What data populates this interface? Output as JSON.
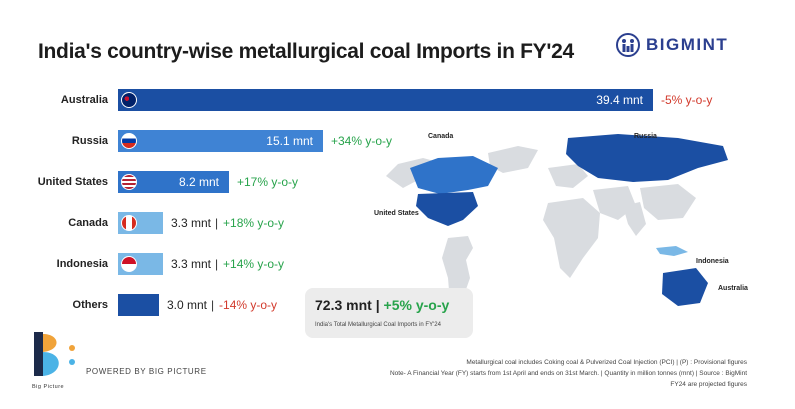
{
  "title": "India's country-wise metallurgical coal Imports in FY'24",
  "brand": "BIGMINT",
  "chart_data": {
    "type": "bar",
    "orientation": "horizontal",
    "title": "India's country-wise metallurgical coal Imports in FY'24",
    "unit": "mnt",
    "categories": [
      "Australia",
      "Russia",
      "United States",
      "Canada",
      "Indonesia",
      "Others"
    ],
    "values": [
      39.4,
      15.1,
      8.2,
      3.3,
      3.3,
      3.0
    ],
    "value_labels": [
      "39.4 mnt",
      "15.1 mnt",
      "8.2 mnt",
      "3.3 mnt",
      "3.3 mnt",
      "3.0 mnt"
    ],
    "yoy_labels": [
      "-5% y-o-y",
      "+34% y-o-y",
      "+17% y-o-y",
      "+18% y-o-y",
      "+14% y-o-y",
      "-14% y-o-y"
    ],
    "yoy_values": [
      -5,
      34,
      17,
      18,
      14,
      -14
    ],
    "bar_colors": [
      "#1b4fa3",
      "#3f83d4",
      "#2f73c9",
      "#7ab8e6",
      "#7ab8e6",
      "#1b4fa3"
    ],
    "xlim": [
      0,
      39.4
    ]
  },
  "total": {
    "value": "72.3 mnt",
    "separator": "|",
    "yoy": "+5% y-o-y",
    "caption": "India's Total Metallurgical Coal Imports in FY'24"
  },
  "map_labels": {
    "canada": "Canada",
    "russia": "Russia",
    "united_states": "United States",
    "indonesia": "Indonesia",
    "australia": "Australia"
  },
  "notes": [
    "Metallurgical coal includes Coking coal & Pulverized Coal Injection (PCI) | (P) : Provisional figures",
    "Note- A Financial Year (FY) starts from 1st April and ends on 31st March. | Quantity in million tonnes (mnt) | Source : BigMint",
    "FY24 are projected figures"
  ],
  "footer": {
    "logo_text": "Big Picture",
    "powered": "POWERED BY BIG PICTURE"
  },
  "colors": {
    "dark_blue": "#1b4fa3",
    "mid_blue": "#3f83d4",
    "light_blue": "#7ab8e6",
    "positive": "#27a34b",
    "negative": "#d23a2c",
    "brand": "#2b3f8f"
  }
}
